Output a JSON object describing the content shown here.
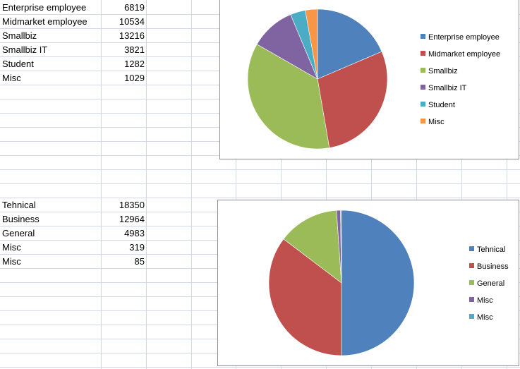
{
  "table1": [
    {
      "label": "Enterprise employee",
      "value": "6819"
    },
    {
      "label": "Midmarket employee",
      "value": "10534"
    },
    {
      "label": "Smallbiz",
      "value": "13216"
    },
    {
      "label": "Smallbiz IT",
      "value": "3821"
    },
    {
      "label": "Student",
      "value": "1282"
    },
    {
      "label": "Misc",
      "value": "1029"
    }
  ],
  "table2": [
    {
      "label": "Tehnical",
      "value": "18350"
    },
    {
      "label": "Business",
      "value": "12964"
    },
    {
      "label": "General",
      "value": "4983"
    },
    {
      "label": "Misc",
      "value": "319"
    },
    {
      "label": "Misc",
      "value": "85"
    }
  ],
  "chart_data": [
    {
      "type": "pie",
      "categories": [
        "Enterprise employee",
        "Midmarket employee",
        "Smallbiz",
        "Smallbiz IT",
        "Student",
        "Misc"
      ],
      "values": [
        6819,
        10534,
        13216,
        3821,
        1282,
        1029
      ],
      "colors": [
        "#4f81bd",
        "#c0504d",
        "#9bbb59",
        "#8064a2",
        "#4bacc6",
        "#f79646"
      ],
      "legend_position": "right",
      "start_angle": "12 o'clock",
      "direction": "clockwise"
    },
    {
      "type": "pie",
      "categories": [
        "Tehnical",
        "Business",
        "General",
        "Misc",
        "Misc"
      ],
      "values": [
        18350,
        12964,
        4983,
        319,
        85
      ],
      "colors": [
        "#4f81bd",
        "#c0504d",
        "#9bbb59",
        "#8064a2",
        "#4bacc6"
      ],
      "legend_position": "right",
      "start_angle": "12 o'clock",
      "direction": "clockwise"
    }
  ],
  "grid_color": "#d0d7e5"
}
